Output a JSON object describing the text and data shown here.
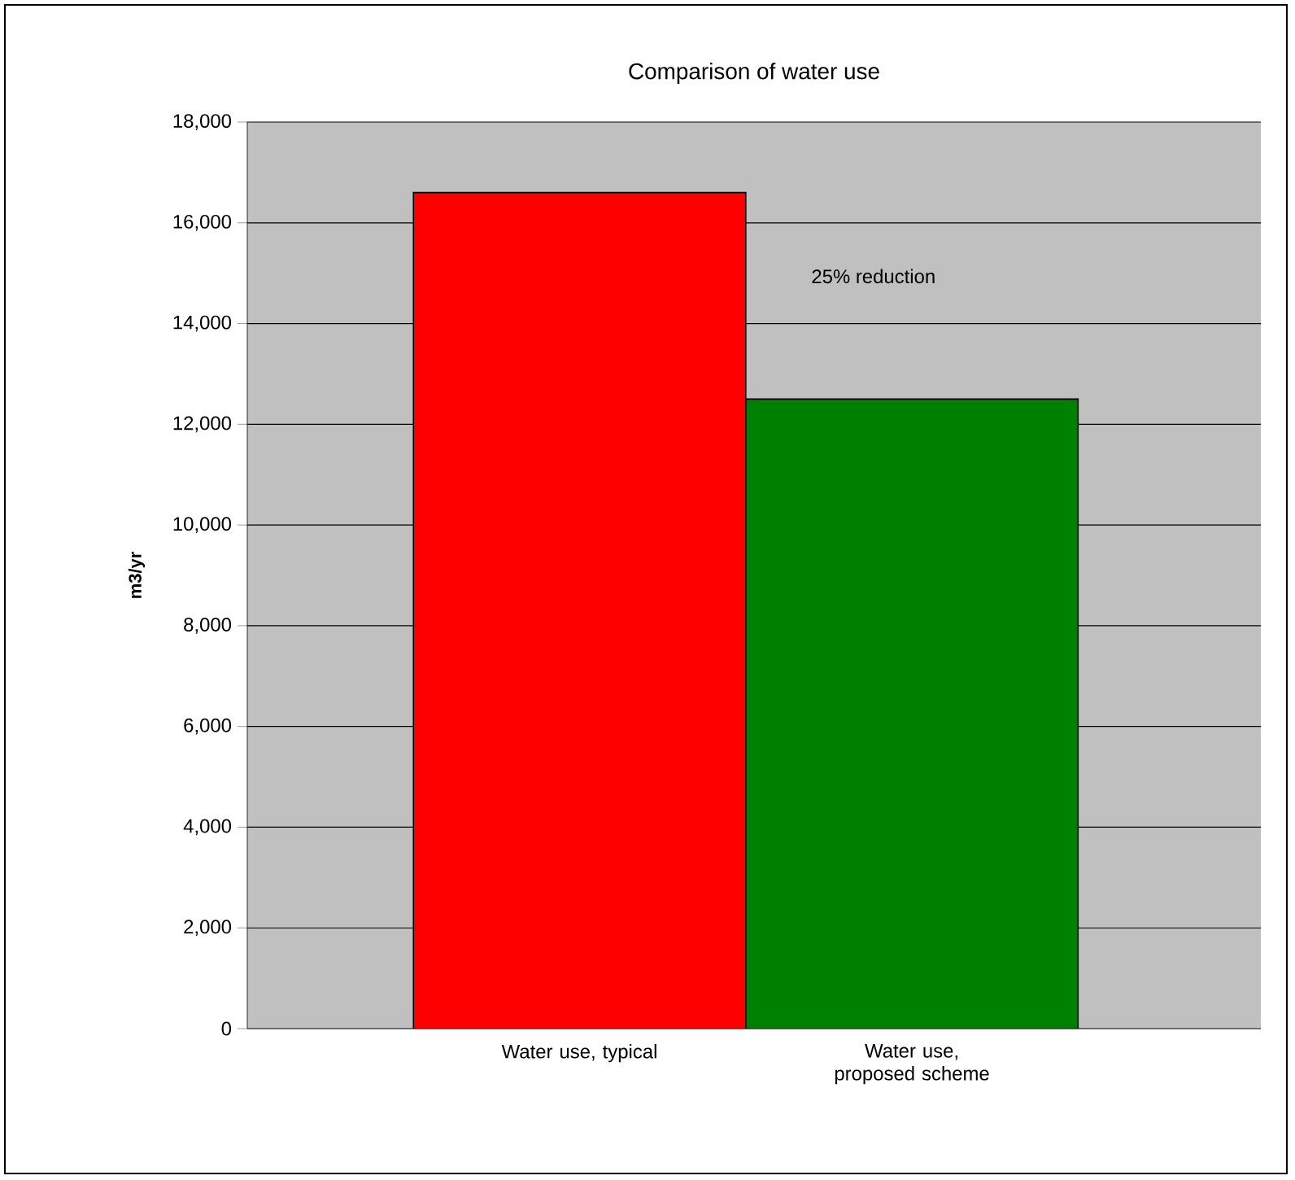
{
  "chart_data": {
    "type": "bar",
    "title": "Comparison of water use",
    "ylabel": "m3/yr",
    "categories": [
      "Water use, typical",
      "Water use, proposed scheme"
    ],
    "values": [
      16600,
      12500
    ],
    "colors": [
      "#ff0000",
      "#008000"
    ],
    "ylim": [
      0,
      18000
    ],
    "yticks": [
      {
        "value": 0,
        "label": "0"
      },
      {
        "value": 2000,
        "label": "2,000"
      },
      {
        "value": 4000,
        "label": "4,000"
      },
      {
        "value": 6000,
        "label": "6,000"
      },
      {
        "value": 8000,
        "label": "8,000"
      },
      {
        "value": 10000,
        "label": "10,000"
      },
      {
        "value": 12000,
        "label": "12,000"
      },
      {
        "value": 14000,
        "label": "14,000"
      },
      {
        "value": 16000,
        "label": "16,000"
      },
      {
        "value": 18000,
        "label": "18,000"
      }
    ],
    "grid": "y",
    "annotations": [
      "25% reduction"
    ]
  }
}
